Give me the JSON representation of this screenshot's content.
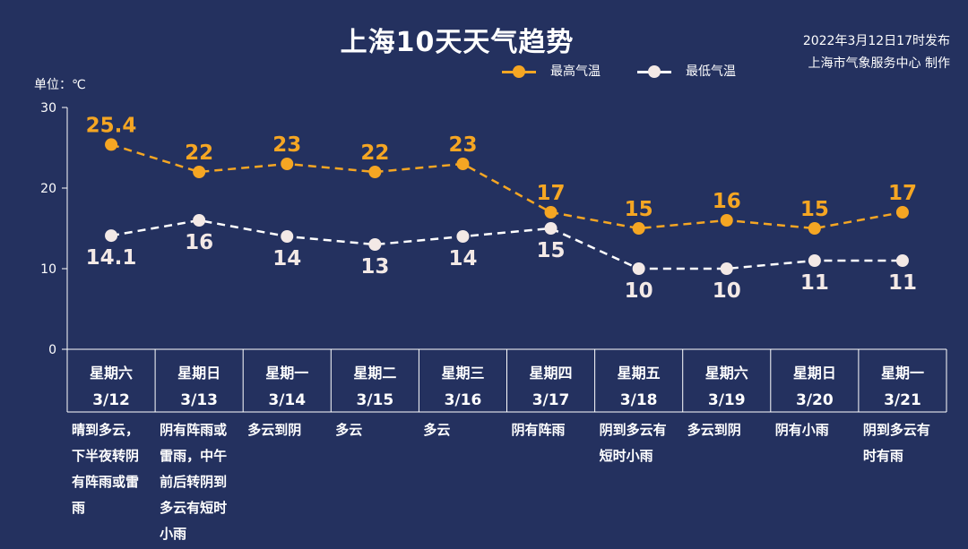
{
  "header": {
    "title": "上海10天天气趋势",
    "publish_time": "2022年3月12日17时发布",
    "publisher": "上海市气象服务中心 制作",
    "unit": "单位：℃"
  },
  "legend": {
    "high": "最高气温",
    "low": "最低气温"
  },
  "colors": {
    "background": "#24315f",
    "high": "#f5a623",
    "low": "#ffffff",
    "text": "#ffffff"
  },
  "chart_data": {
    "type": "line",
    "title": "上海10天天气趋势",
    "ylabel": "单位：℃",
    "ylim": [
      0,
      30
    ],
    "yticks": [
      0,
      10,
      20,
      30
    ],
    "grid": false,
    "legend_position": "top-right",
    "weekdays": [
      "星期六",
      "星期日",
      "星期一",
      "星期二",
      "星期三",
      "星期四",
      "星期五",
      "星期六",
      "星期日",
      "星期一"
    ],
    "categories": [
      "3/12",
      "3/13",
      "3/14",
      "3/15",
      "3/16",
      "3/17",
      "3/18",
      "3/19",
      "3/20",
      "3/21"
    ],
    "series": [
      {
        "name": "最高气温",
        "values": [
          25.4,
          22,
          23,
          22,
          23,
          17,
          15,
          16,
          15,
          17
        ]
      },
      {
        "name": "最低气温",
        "values": [
          14.1,
          16,
          14,
          13,
          14,
          15,
          10,
          10,
          11,
          11
        ]
      }
    ],
    "data_labels": {
      "high": [
        "25.4",
        "22",
        "23",
        "22",
        "23",
        "17",
        "15",
        "16",
        "15",
        "17"
      ],
      "low": [
        "14.1",
        "16",
        "14",
        "13",
        "14",
        "15",
        "10",
        "10",
        "11",
        "11"
      ]
    }
  },
  "forecast": [
    "晴到多云，下半夜转阴有阵雨或雷雨",
    "阴有阵雨或雷雨，中午前后转阴到多云有短时小雨",
    "多云到阴",
    "多云",
    "多云",
    "阴有阵雨",
    "阴到多云有短时小雨",
    "多云到阴",
    "阴有小雨",
    "阴到多云有时有雨"
  ]
}
